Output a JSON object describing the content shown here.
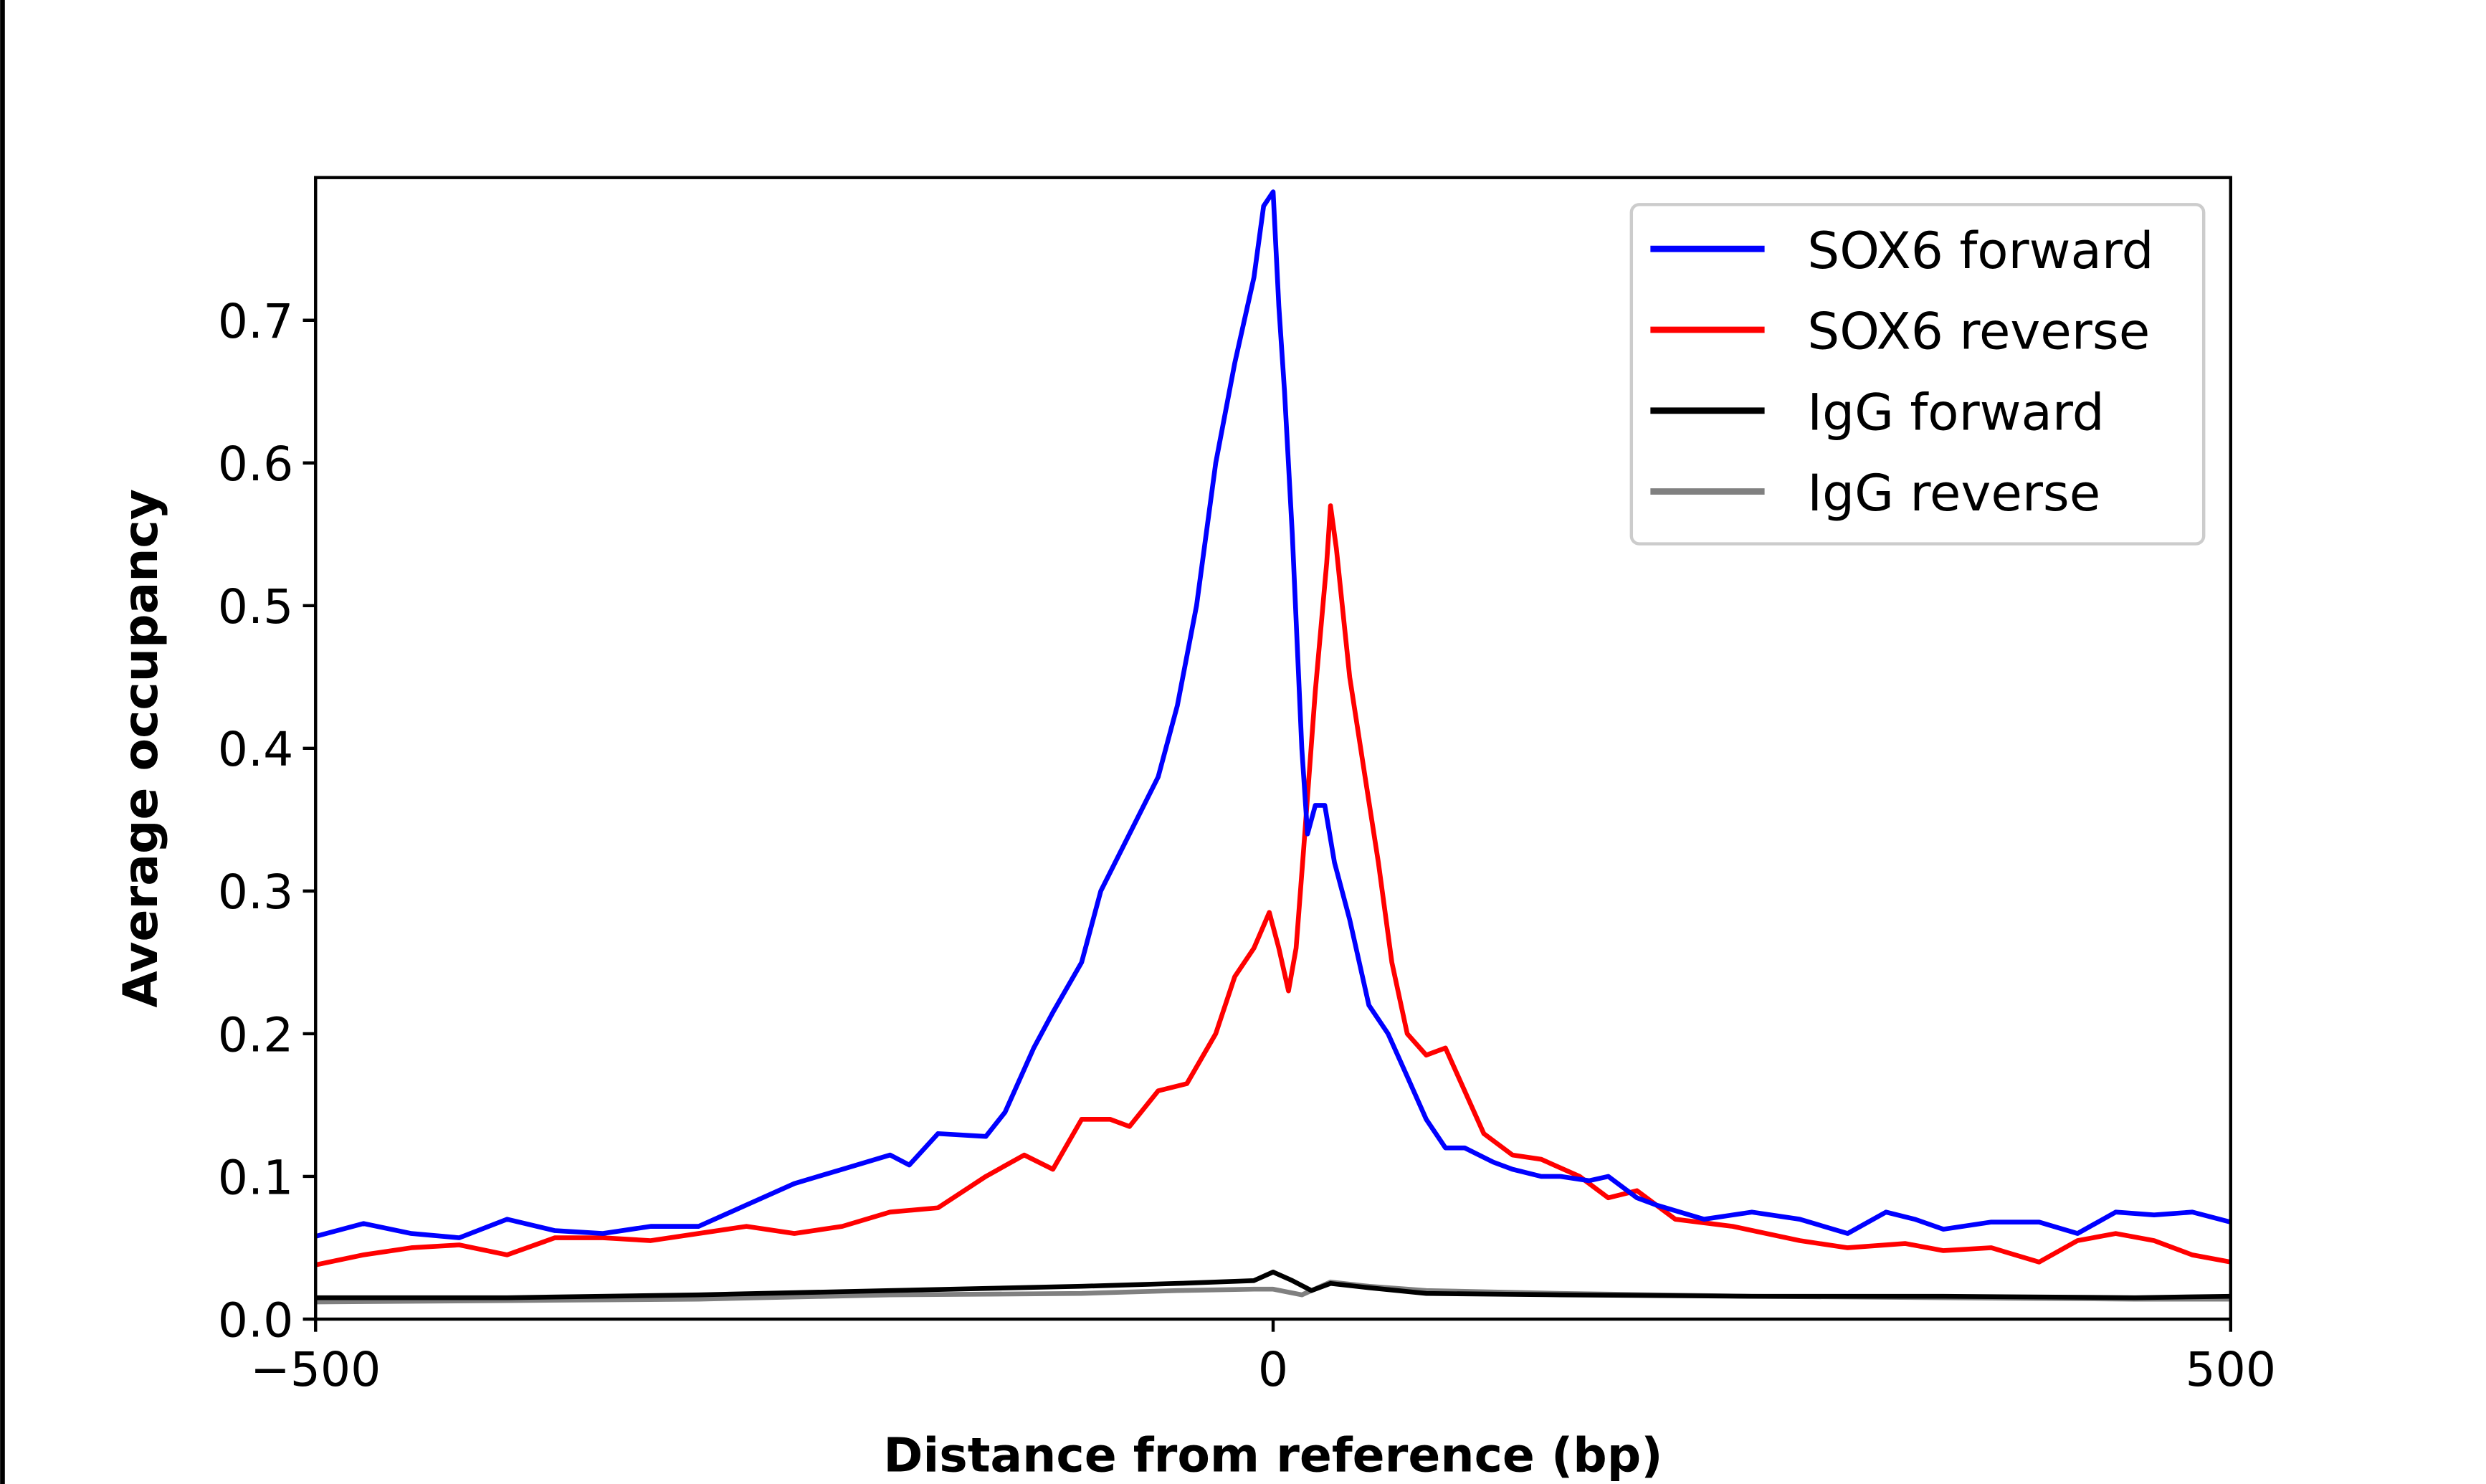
{
  "chart_data": {
    "type": "line",
    "title": "",
    "xlabel": "Distance from reference (bp)",
    "ylabel": "Average occupancy",
    "xlim": [
      -500,
      500
    ],
    "ylim": [
      0,
      0.8
    ],
    "xticks": [
      "−500",
      "0",
      "500"
    ],
    "xtick_values": [
      -500,
      0,
      500
    ],
    "yticks": [
      "0.0",
      "0.1",
      "0.2",
      "0.3",
      "0.4",
      "0.5",
      "0.6",
      "0.7"
    ],
    "ytick_values": [
      0,
      0.1,
      0.2,
      0.3,
      0.4,
      0.5,
      0.6,
      0.7
    ],
    "grid": false,
    "legend_position": "top-right",
    "series": [
      {
        "name": "SOX6 forward",
        "color": "#0000ff",
        "x": [
          -500,
          -475,
          -450,
          -425,
          -400,
          -375,
          -350,
          -325,
          -300,
          -275,
          -250,
          -225,
          -200,
          -190,
          -175,
          -150,
          -140,
          -125,
          -115,
          -100,
          -90,
          -75,
          -60,
          -50,
          -40,
          -30,
          -20,
          -10,
          -5,
          0,
          3,
          6,
          10,
          15,
          18,
          22,
          27,
          32,
          40,
          50,
          60,
          70,
          80,
          90,
          100,
          115,
          125,
          140,
          150,
          165,
          175,
          190,
          200,
          225,
          250,
          275,
          300,
          320,
          335,
          350,
          375,
          400,
          420,
          440,
          460,
          480,
          500
        ],
        "y": [
          0.058,
          0.067,
          0.06,
          0.057,
          0.07,
          0.062,
          0.06,
          0.065,
          0.065,
          0.08,
          0.095,
          0.105,
          0.115,
          0.108,
          0.13,
          0.128,
          0.145,
          0.19,
          0.215,
          0.25,
          0.3,
          0.34,
          0.38,
          0.43,
          0.5,
          0.6,
          0.67,
          0.73,
          0.78,
          0.79,
          0.71,
          0.65,
          0.55,
          0.4,
          0.34,
          0.36,
          0.36,
          0.32,
          0.28,
          0.22,
          0.2,
          0.17,
          0.14,
          0.12,
          0.12,
          0.11,
          0.105,
          0.1,
          0.1,
          0.097,
          0.1,
          0.085,
          0.08,
          0.07,
          0.075,
          0.07,
          0.06,
          0.075,
          0.07,
          0.063,
          0.068,
          0.068,
          0.06,
          0.075,
          0.073,
          0.075,
          0.068
        ]
      },
      {
        "name": "SOX6 reverse",
        "color": "#ff0000",
        "x": [
          -500,
          -475,
          -450,
          -425,
          -400,
          -375,
          -350,
          -325,
          -300,
          -275,
          -250,
          -225,
          -200,
          -175,
          -150,
          -130,
          -115,
          -100,
          -85,
          -75,
          -60,
          -45,
          -30,
          -20,
          -10,
          -2,
          3,
          8,
          12,
          16,
          22,
          28,
          30,
          33,
          40,
          48,
          55,
          62,
          70,
          80,
          90,
          100,
          110,
          125,
          140,
          160,
          175,
          190,
          210,
          240,
          275,
          300,
          330,
          350,
          375,
          400,
          420,
          440,
          460,
          480,
          500
        ],
        "y": [
          0.038,
          0.045,
          0.05,
          0.052,
          0.045,
          0.057,
          0.057,
          0.055,
          0.06,
          0.065,
          0.06,
          0.065,
          0.075,
          0.078,
          0.1,
          0.115,
          0.105,
          0.14,
          0.14,
          0.135,
          0.16,
          0.165,
          0.2,
          0.24,
          0.26,
          0.285,
          0.26,
          0.23,
          0.26,
          0.33,
          0.44,
          0.53,
          0.57,
          0.54,
          0.45,
          0.38,
          0.32,
          0.25,
          0.2,
          0.185,
          0.19,
          0.16,
          0.13,
          0.115,
          0.112,
          0.1,
          0.085,
          0.09,
          0.07,
          0.065,
          0.055,
          0.05,
          0.053,
          0.048,
          0.05,
          0.04,
          0.055,
          0.06,
          0.055,
          0.045,
          0.04
        ]
      },
      {
        "name": "IgG forward",
        "color": "#000000",
        "x": [
          -500,
          -400,
          -300,
          -200,
          -100,
          -50,
          -10,
          0,
          10,
          20,
          30,
          50,
          80,
          150,
          250,
          350,
          450,
          500
        ],
        "y": [
          0.015,
          0.015,
          0.017,
          0.02,
          0.023,
          0.025,
          0.027,
          0.033,
          0.027,
          0.02,
          0.025,
          0.022,
          0.018,
          0.017,
          0.016,
          0.016,
          0.015,
          0.016
        ]
      },
      {
        "name": "IgG reverse",
        "color": "#808080",
        "x": [
          -500,
          -400,
          -300,
          -200,
          -100,
          -50,
          -10,
          0,
          15,
          30,
          50,
          80,
          150,
          250,
          350,
          450,
          500
        ],
        "y": [
          0.012,
          0.013,
          0.014,
          0.017,
          0.018,
          0.02,
          0.021,
          0.021,
          0.017,
          0.026,
          0.023,
          0.02,
          0.018,
          0.016,
          0.015,
          0.014,
          0.014
        ]
      }
    ]
  }
}
